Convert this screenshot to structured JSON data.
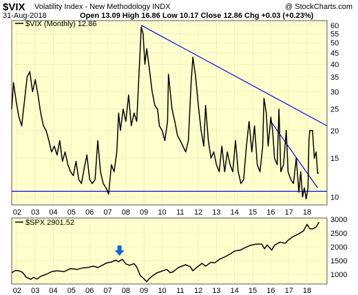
{
  "header": {
    "symbol": "$VIX",
    "name": "Volatility Index - New Methodology  INDX",
    "credit": "@ StockCharts.com",
    "date": "31-Aug-2018",
    "ohlc": "Open 13.09  High 16.86  Low 10.17  Close 12.86  Chg +0.03 (+0.23%)",
    "ohlc_direction": "up"
  },
  "colors": {
    "panel_bg": "#FFFFCC",
    "grid": "#B3B3B3",
    "price_line": "#000000",
    "trendline": "#0000EE",
    "arrow": "#1565D8"
  },
  "chart_data": [
    {
      "type": "line",
      "legend": "$VIX (Monthly) 12.86",
      "scale": "log",
      "ylim": [
        9.2,
        63
      ],
      "yticks": [
        10,
        15,
        20,
        25,
        30,
        35,
        40,
        45,
        50,
        55,
        60
      ],
      "xlim": [
        2001.7,
        2019.1
      ],
      "xticks": [
        2002,
        2003,
        2004,
        2005,
        2006,
        2007,
        2008,
        2009,
        2010,
        2011,
        2012,
        2013,
        2014,
        2015,
        2016,
        2017,
        2018
      ],
      "xtick_labels": [
        "02",
        "03",
        "04",
        "05",
        "06",
        "07",
        "08",
        "09",
        "10",
        "11",
        "12",
        "13",
        "14",
        "15",
        "16",
        "17",
        "18"
      ],
      "grid": true,
      "series": [
        {
          "values": [
            [
              2001.7,
              25
            ],
            [
              2001.8,
              33
            ],
            [
              2001.95,
              27
            ],
            [
              2002.1,
              23
            ],
            [
              2002.25,
              21
            ],
            [
              2002.4,
              27
            ],
            [
              2002.55,
              35
            ],
            [
              2002.7,
              37
            ],
            [
              2002.85,
              30
            ],
            [
              2003.0,
              34
            ],
            [
              2003.15,
              29
            ],
            [
              2003.3,
              24
            ],
            [
              2003.45,
              21
            ],
            [
              2003.6,
              20
            ],
            [
              2003.75,
              18
            ],
            [
              2003.9,
              16
            ],
            [
              2004.05,
              17
            ],
            [
              2004.2,
              15.5
            ],
            [
              2004.35,
              18
            ],
            [
              2004.5,
              14.5
            ],
            [
              2004.65,
              16
            ],
            [
              2004.8,
              14
            ],
            [
              2004.95,
              13
            ],
            [
              2005.1,
              12.5
            ],
            [
              2005.25,
              14.5
            ],
            [
              2005.4,
              12
            ],
            [
              2005.55,
              11.5
            ],
            [
              2005.7,
              13.5
            ],
            [
              2005.85,
              15.5
            ],
            [
              2006.0,
              12
            ],
            [
              2006.15,
              11.5
            ],
            [
              2006.3,
              12
            ],
            [
              2006.45,
              18
            ],
            [
              2006.6,
              13
            ],
            [
              2006.75,
              11.5
            ],
            [
              2006.9,
              11
            ],
            [
              2007.05,
              10.3
            ],
            [
              2007.2,
              14
            ],
            [
              2007.35,
              13
            ],
            [
              2007.5,
              16
            ],
            [
              2007.6,
              24
            ],
            [
              2007.7,
              20
            ],
            [
              2007.85,
              25
            ],
            [
              2008.0,
              22
            ],
            [
              2008.15,
              29
            ],
            [
              2008.3,
              21
            ],
            [
              2008.45,
              24
            ],
            [
              2008.6,
              22
            ],
            [
              2008.75,
              40
            ],
            [
              2008.85,
              59
            ],
            [
              2008.95,
              55
            ],
            [
              2009.05,
              40
            ],
            [
              2009.15,
              47
            ],
            [
              2009.3,
              38
            ],
            [
              2009.45,
              30
            ],
            [
              2009.6,
              26
            ],
            [
              2009.75,
              25
            ],
            [
              2009.85,
              21
            ],
            [
              2010.0,
              20
            ],
            [
              2010.15,
              18
            ],
            [
              2010.3,
              22
            ],
            [
              2010.35,
              36
            ],
            [
              2010.45,
              30
            ],
            [
              2010.55,
              25
            ],
            [
              2010.7,
              22
            ],
            [
              2010.85,
              19
            ],
            [
              2011.0,
              18
            ],
            [
              2011.15,
              17
            ],
            [
              2011.3,
              16
            ],
            [
              2011.45,
              18
            ],
            [
              2011.6,
              33
            ],
            [
              2011.7,
              43
            ],
            [
              2011.85,
              35
            ],
            [
              2012.0,
              26
            ],
            [
              2012.15,
              20
            ],
            [
              2012.3,
              17
            ],
            [
              2012.4,
              26
            ],
            [
              2012.55,
              18
            ],
            [
              2012.7,
              15
            ],
            [
              2012.85,
              16
            ],
            [
              2013.0,
              14
            ],
            [
              2013.15,
              13
            ],
            [
              2013.3,
              17
            ],
            [
              2013.45,
              13
            ],
            [
              2013.6,
              16
            ],
            [
              2013.75,
              14
            ],
            [
              2013.9,
              13
            ],
            [
              2014.05,
              18
            ],
            [
              2014.2,
              13
            ],
            [
              2014.35,
              11.5
            ],
            [
              2014.5,
              12
            ],
            [
              2014.65,
              17
            ],
            [
              2014.8,
              22
            ],
            [
              2014.95,
              16
            ],
            [
              2015.1,
              21
            ],
            [
              2015.25,
              14
            ],
            [
              2015.4,
              13
            ],
            [
              2015.55,
              17
            ],
            [
              2015.62,
              28
            ],
            [
              2015.75,
              24
            ],
            [
              2015.85,
              17
            ],
            [
              2016.0,
              23
            ],
            [
              2016.1,
              20
            ],
            [
              2016.2,
              15
            ],
            [
              2016.35,
              14
            ],
            [
              2016.45,
              25
            ],
            [
              2016.55,
              13
            ],
            [
              2016.7,
              14
            ],
            [
              2016.85,
              20
            ],
            [
              2016.95,
              13
            ],
            [
              2017.1,
              12
            ],
            [
              2017.25,
              11.5
            ],
            [
              2017.4,
              15
            ],
            [
              2017.55,
              10.5
            ],
            [
              2017.65,
              13
            ],
            [
              2017.75,
              10
            ],
            [
              2017.85,
              11
            ],
            [
              2017.95,
              9.8
            ],
            [
              2018.05,
              11
            ],
            [
              2018.1,
              18
            ],
            [
              2018.15,
              20
            ],
            [
              2018.3,
              20
            ],
            [
              2018.4,
              15
            ],
            [
              2018.5,
              16
            ],
            [
              2018.58,
              12.8
            ],
            [
              2018.66,
              12.86
            ]
          ]
        }
      ]
    },
    {
      "type": "line",
      "legend": "$SPX 2901.52",
      "ylim": [
        650,
        3050
      ],
      "yticks": [
        1000,
        1500,
        2000,
        2500,
        3000
      ],
      "xlim": [
        2001.7,
        2019.1
      ],
      "xticks": [
        2002,
        2003,
        2004,
        2005,
        2006,
        2007,
        2008,
        2009,
        2010,
        2011,
        2012,
        2013,
        2014,
        2015,
        2016,
        2017,
        2018
      ],
      "xtick_labels": [
        "02",
        "03",
        "04",
        "05",
        "06",
        "07",
        "08",
        "09",
        "10",
        "11",
        "12",
        "13",
        "14",
        "15",
        "16",
        "17",
        "18"
      ],
      "grid": true,
      "annotation": "arrow marking market top near 2007.8",
      "series": [
        {
          "values": [
            [
              2001.7,
              1060
            ],
            [
              2001.9,
              1140
            ],
            [
              2002.1,
              1130
            ],
            [
              2002.3,
              1070
            ],
            [
              2002.5,
              900
            ],
            [
              2002.75,
              820
            ],
            [
              2002.9,
              890
            ],
            [
              2003.1,
              830
            ],
            [
              2003.3,
              930
            ],
            [
              2003.6,
              1000
            ],
            [
              2003.9,
              1100
            ],
            [
              2004.2,
              1130
            ],
            [
              2004.6,
              1100
            ],
            [
              2004.95,
              1210
            ],
            [
              2005.3,
              1180
            ],
            [
              2005.6,
              1230
            ],
            [
              2005.9,
              1250
            ],
            [
              2006.2,
              1300
            ],
            [
              2006.45,
              1250
            ],
            [
              2006.7,
              1330
            ],
            [
              2006.95,
              1420
            ],
            [
              2007.2,
              1450
            ],
            [
              2007.45,
              1520
            ],
            [
              2007.6,
              1460
            ],
            [
              2007.8,
              1550
            ],
            [
              2008.0,
              1380
            ],
            [
              2008.2,
              1330
            ],
            [
              2008.45,
              1390
            ],
            [
              2008.6,
              1270
            ],
            [
              2008.8,
              950
            ],
            [
              2008.95,
              870
            ],
            [
              2009.15,
              735
            ],
            [
              2009.3,
              850
            ],
            [
              2009.5,
              960
            ],
            [
              2009.7,
              1050
            ],
            [
              2009.95,
              1110
            ],
            [
              2010.25,
              1180
            ],
            [
              2010.45,
              1060
            ],
            [
              2010.6,
              1090
            ],
            [
              2010.9,
              1250
            ],
            [
              2011.3,
              1350
            ],
            [
              2011.55,
              1280
            ],
            [
              2011.7,
              1130
            ],
            [
              2011.9,
              1250
            ],
            [
              2012.2,
              1400
            ],
            [
              2012.4,
              1300
            ],
            [
              2012.7,
              1440
            ],
            [
              2012.9,
              1420
            ],
            [
              2013.2,
              1560
            ],
            [
              2013.5,
              1650
            ],
            [
              2013.8,
              1760
            ],
            [
              2014.0,
              1850
            ],
            [
              2014.3,
              1880
            ],
            [
              2014.6,
              1980
            ],
            [
              2014.9,
              2060
            ],
            [
              2015.2,
              2100
            ],
            [
              2015.5,
              2100
            ],
            [
              2015.65,
              1930
            ],
            [
              2015.8,
              2070
            ],
            [
              2016.05,
              1880
            ],
            [
              2016.2,
              2060
            ],
            [
              2016.5,
              2170
            ],
            [
              2016.8,
              2130
            ],
            [
              2016.95,
              2240
            ],
            [
              2017.2,
              2360
            ],
            [
              2017.5,
              2460
            ],
            [
              2017.8,
              2580
            ],
            [
              2018.0,
              2820
            ],
            [
              2018.15,
              2660
            ],
            [
              2018.3,
              2650
            ],
            [
              2018.5,
              2720
            ],
            [
              2018.66,
              2901.52
            ]
          ]
        }
      ]
    }
  ]
}
